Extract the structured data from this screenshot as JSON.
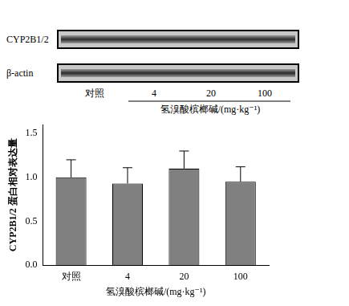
{
  "blot": {
    "rows": [
      "CYP2B1/2",
      "β-actin"
    ],
    "lane_labels": [
      "对照",
      "4",
      "20",
      "100"
    ],
    "dose_label": "氢溴酸槟榔碱/(mg·kg⁻¹)"
  },
  "chart_data": {
    "type": "bar",
    "categories": [
      "对照",
      "4",
      "20",
      "100"
    ],
    "values": [
      1.0,
      0.93,
      1.1,
      0.95
    ],
    "errors": [
      0.2,
      0.18,
      0.2,
      0.17
    ],
    "color": "#808080",
    "x_label": "氢溴酸槟榔碱/(mg·kg⁻¹)",
    "y_label": "CYP2B1/2 蛋白相对表达量",
    "ylim": [
      0,
      1.6
    ],
    "yticks": [
      {
        "value": 0,
        "label": "0.0"
      },
      {
        "value": 0.5,
        "label": "0.5"
      },
      {
        "value": 1,
        "label": "1.0"
      },
      {
        "value": 1.5,
        "label": "1.5"
      }
    ],
    "grid": false
  }
}
